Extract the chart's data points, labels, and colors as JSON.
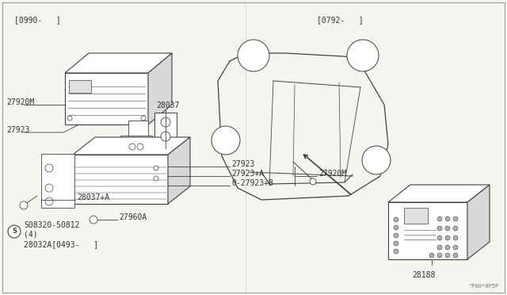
{
  "bg_color": "#f5f5f0",
  "line_color": "#404040",
  "text_color": "#303030",
  "fig_width": 6.4,
  "fig_height": 3.72,
  "dpi": 100,
  "watermark": "^P80*0P5P",
  "bracket_top_left_label": "[0990-   ]",
  "bracket_top_right_label": "[0792-   ]",
  "label_28037": "28037",
  "label_28188": "28188",
  "label_27920M_top": "27920M",
  "label_27923_top": "27923",
  "label_27920M_bot": "27920M",
  "label_27923_bot": "27923",
  "label_27923A": "27923+A",
  "label_27923B": "0-27923+B",
  "label_28037A": "28037+A",
  "label_27960A": "27960A",
  "label_bolt": "S08320-50812",
  "label_bolt2": "(4)",
  "label_bolt3": "28032A[0493-   ]"
}
